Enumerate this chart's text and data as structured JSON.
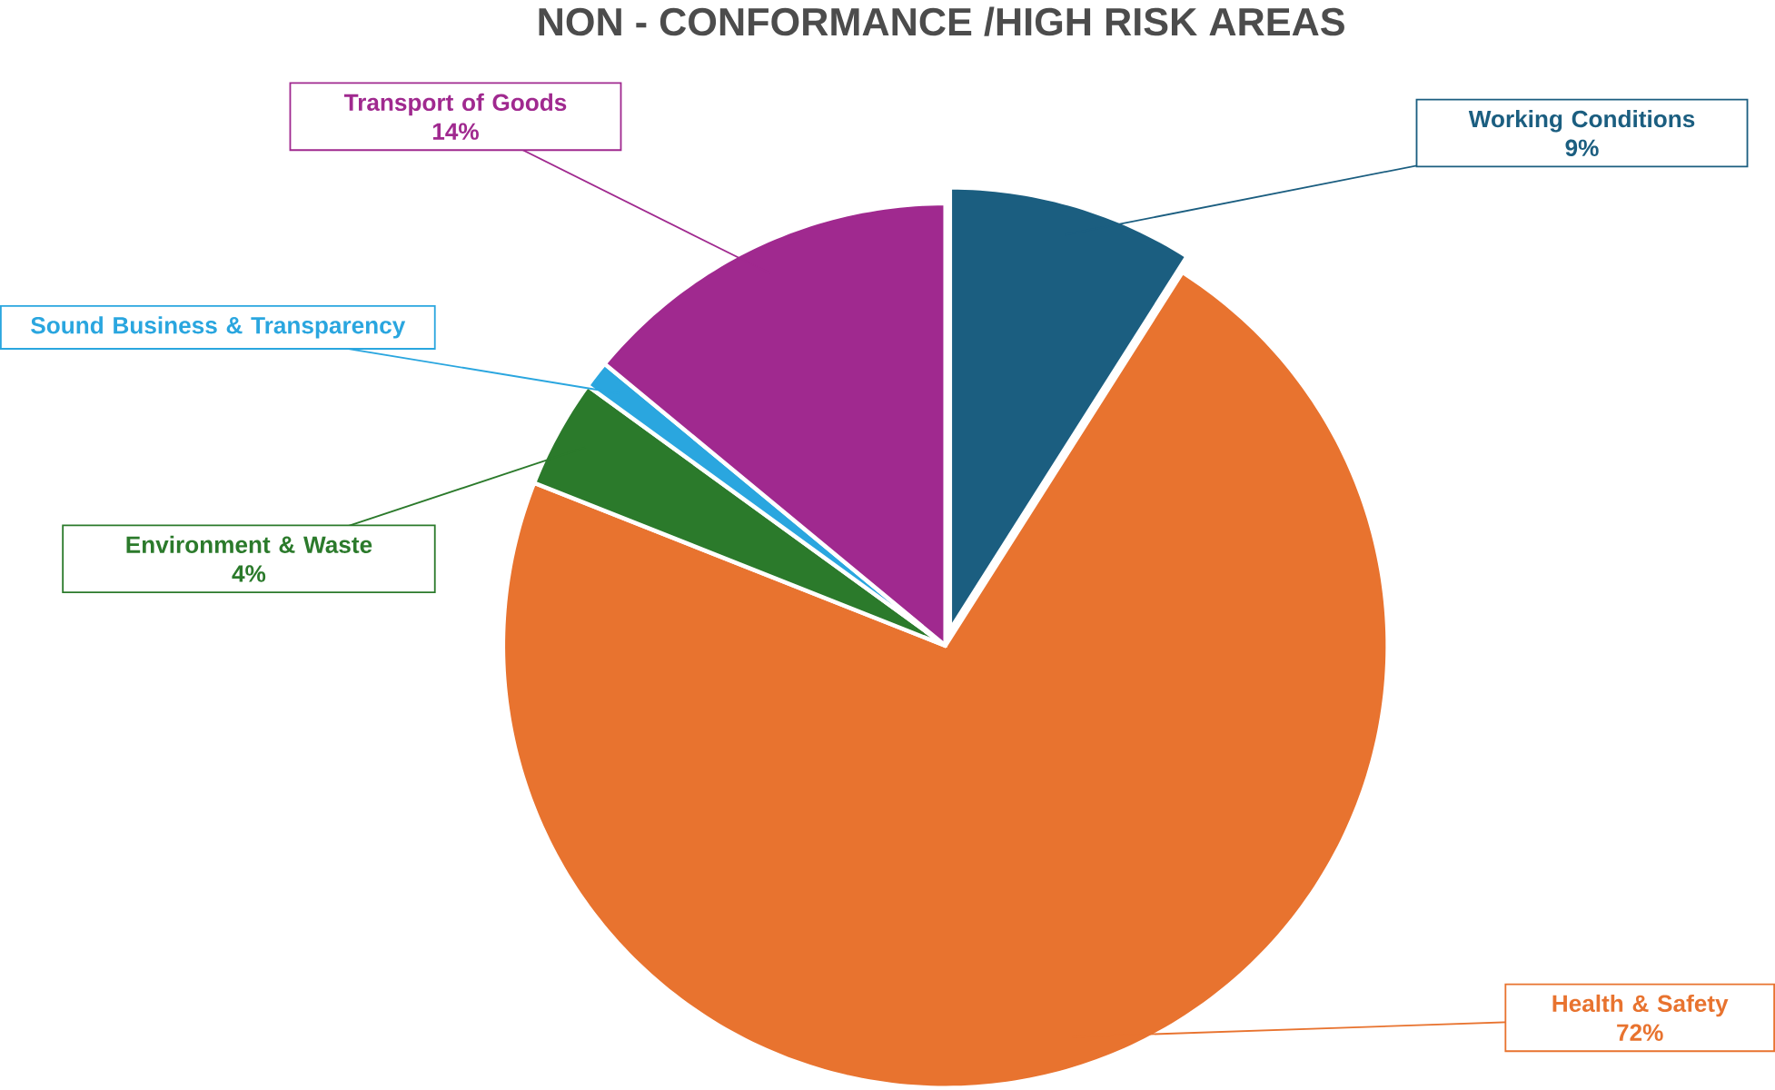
{
  "chart_data": {
    "type": "pie",
    "title": "NON - CONFORMANCE /HIGH RISK AREAS",
    "categories": [
      "Working Conditions",
      "Health & Safety",
      "Environment & Waste",
      "Sound Business & Transparency",
      "Transport of Goods"
    ],
    "values": [
      9,
      72,
      4,
      1,
      14
    ],
    "value_labels": [
      "9%",
      "72%",
      "4%",
      null,
      "14%"
    ],
    "colors": [
      "#1b5e80",
      "#e8732f",
      "#2b7a2b",
      "#2aa6df",
      "#a0298f"
    ]
  }
}
